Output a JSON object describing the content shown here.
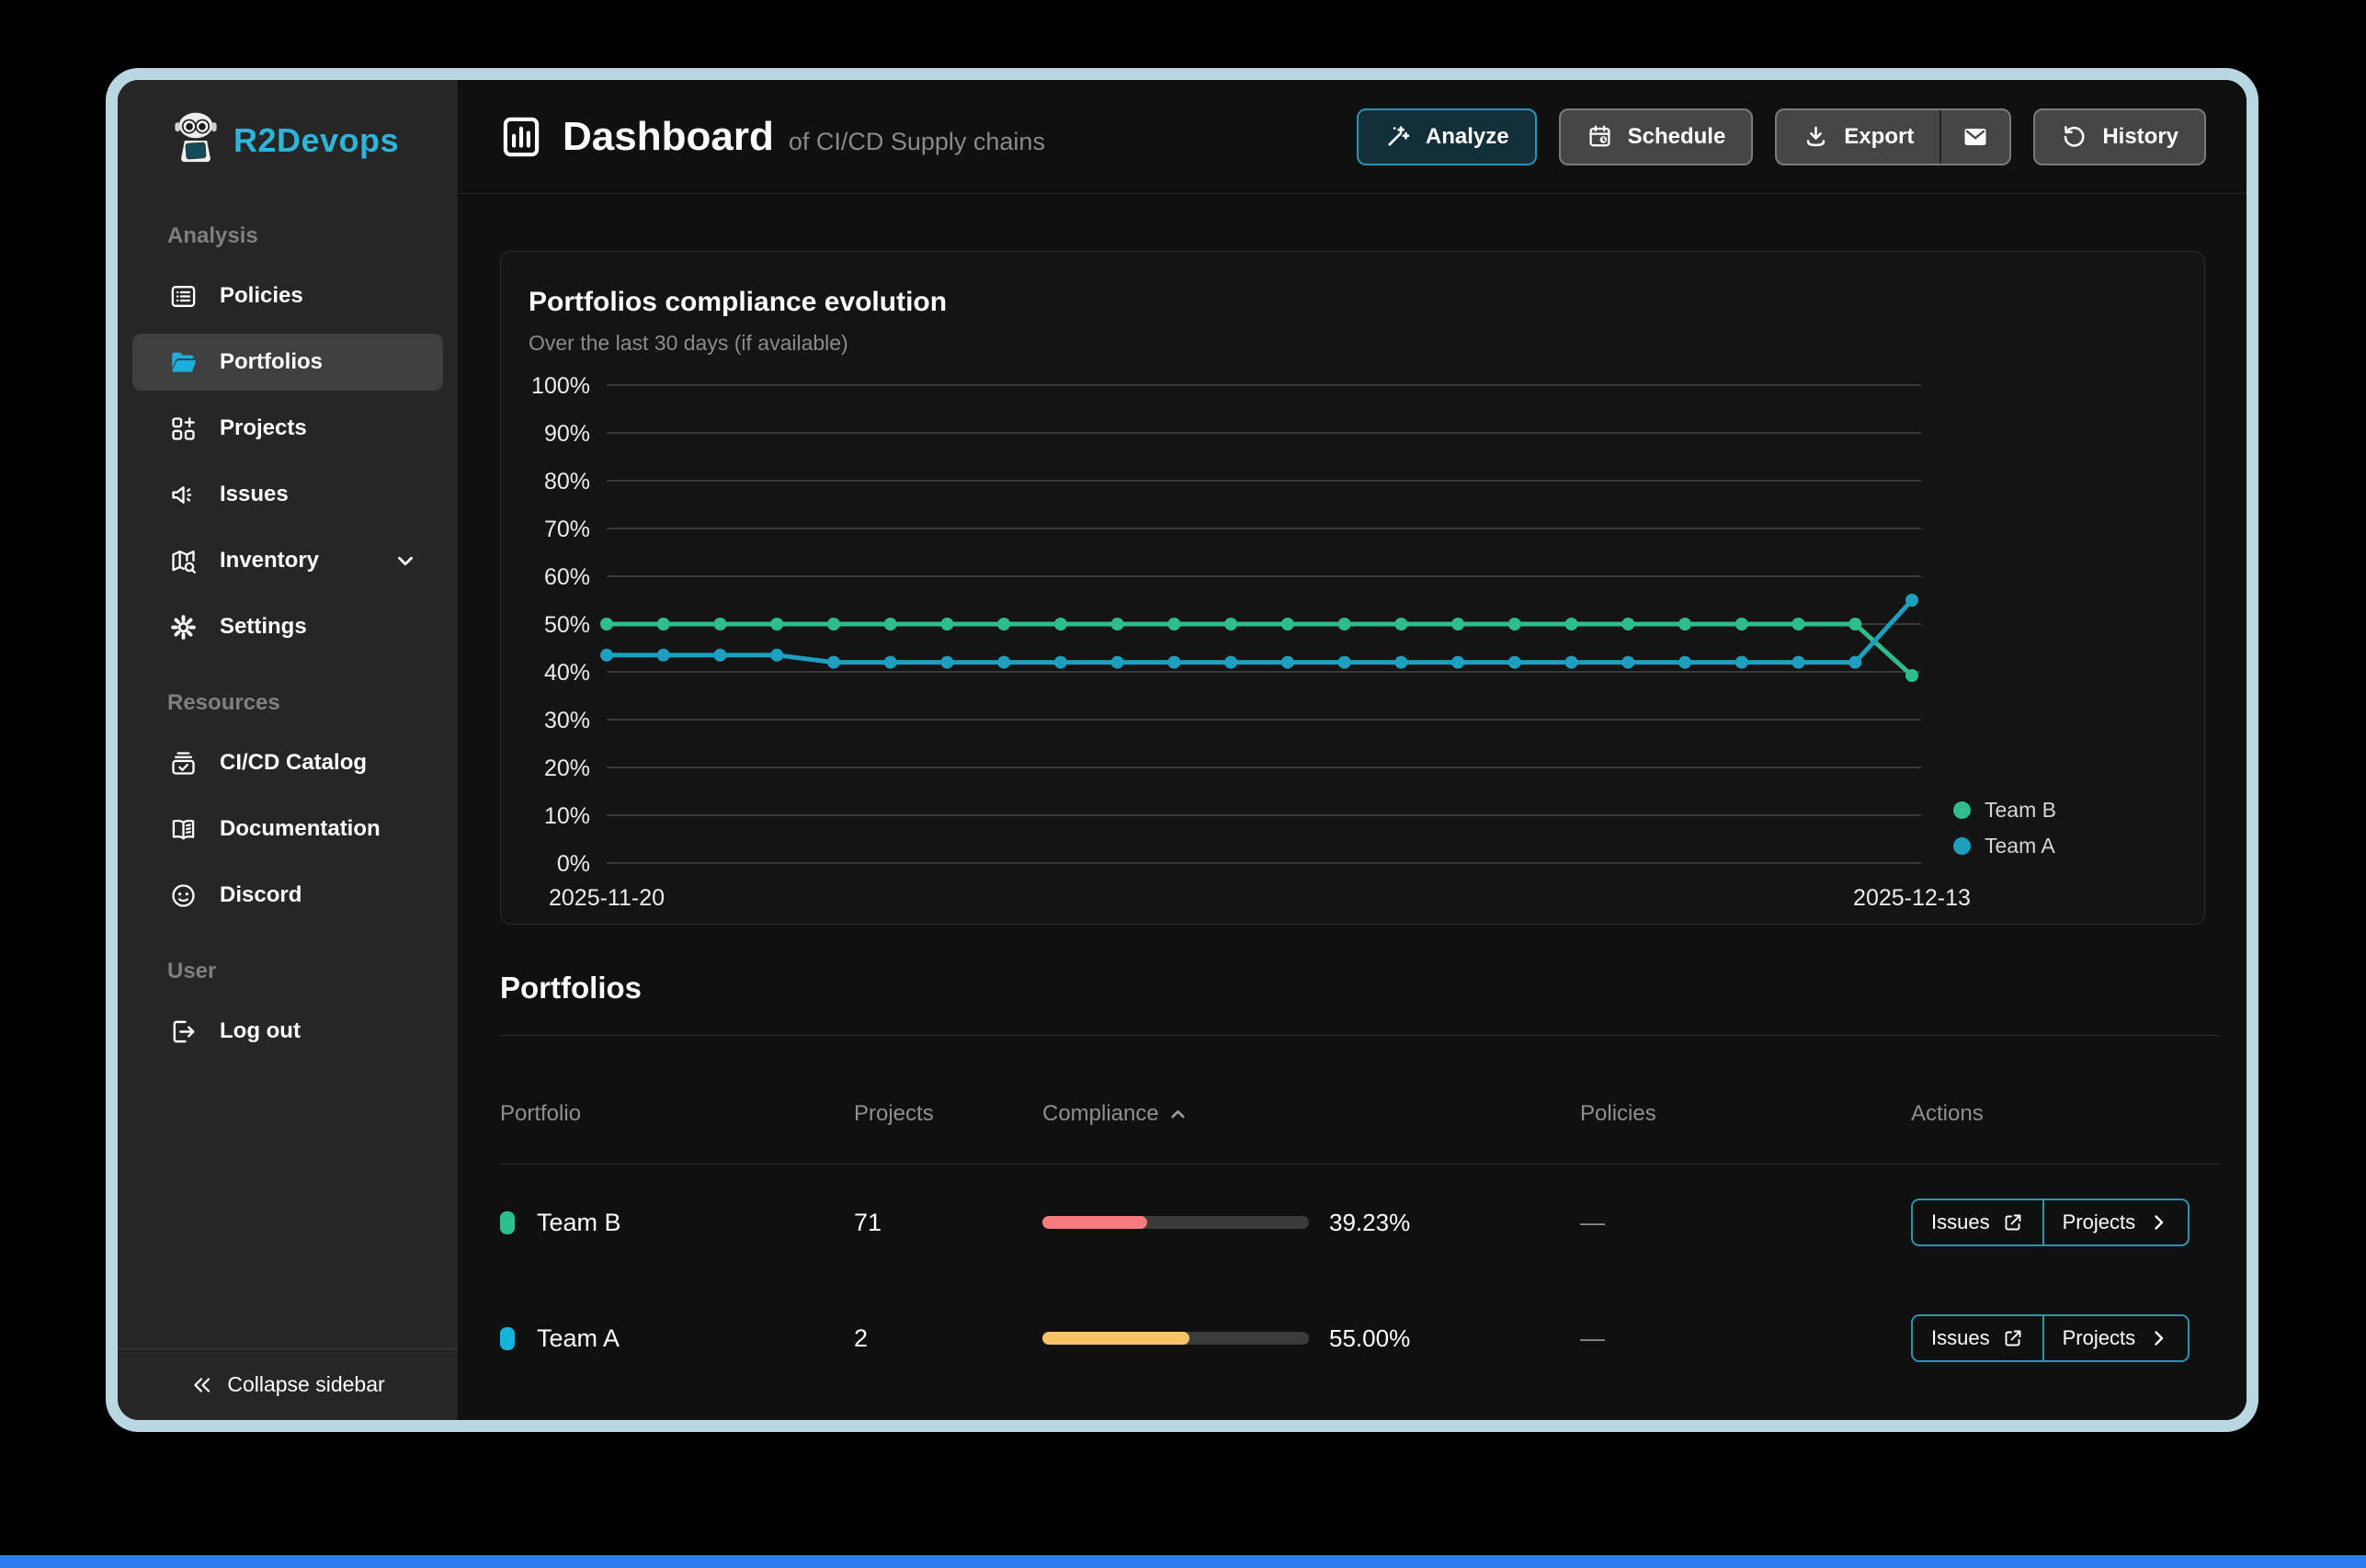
{
  "brand": {
    "name": "R2Devops",
    "accent_color": "#2cb5d8"
  },
  "window": {
    "frame_color": "#b9d6e3",
    "bottom_strip_color": "#2e7bf0"
  },
  "sidebar": {
    "sections": [
      {
        "label": "Analysis",
        "items": [
          {
            "label": "Policies",
            "icon": "list-details-icon"
          },
          {
            "label": "Portfolios",
            "icon": "folder-open-icon",
            "active": true
          },
          {
            "label": "Projects",
            "icon": "apps-add-icon"
          },
          {
            "label": "Issues",
            "icon": "megaphone-icon"
          },
          {
            "label": "Inventory",
            "icon": "map-search-icon",
            "has_dropdown": true
          },
          {
            "label": "Settings",
            "icon": "gear-icon"
          }
        ]
      },
      {
        "label": "Resources",
        "items": [
          {
            "label": "CI/CD Catalog",
            "icon": "archive-check-icon"
          },
          {
            "label": "Documentation",
            "icon": "book-open-icon"
          },
          {
            "label": "Discord",
            "icon": "discord-icon"
          }
        ]
      },
      {
        "label": "User",
        "items": [
          {
            "label": "Log out",
            "icon": "logout-icon"
          }
        ]
      }
    ],
    "collapse_label": "Collapse sidebar"
  },
  "header": {
    "title": "Dashboard",
    "subtitle": "of CI/CD Supply chains",
    "actions": {
      "analyze": {
        "label": "Analyze",
        "icon": "magic-wand-icon"
      },
      "schedule": {
        "label": "Schedule",
        "icon": "calendar-clock-icon"
      },
      "export": {
        "label": "Export",
        "icon": "download-icon",
        "mail_icon": "envelope-icon"
      },
      "history": {
        "label": "History",
        "icon": "history-icon"
      }
    }
  },
  "chart_data": {
    "type": "line",
    "title": "Portfolios compliance evolution",
    "subtitle": "Over the last 30 days (if available)",
    "ylim": [
      0,
      100
    ],
    "yticks": [
      0,
      10,
      20,
      30,
      40,
      50,
      60,
      70,
      80,
      90,
      100
    ],
    "ytick_format": "percent",
    "grid": true,
    "x_start_label": "2025-11-20",
    "x_end_label": "2025-12-13",
    "legend_position": "right-bottom",
    "series": [
      {
        "name": "Team B",
        "color": "#2ebd8c",
        "values": [
          50,
          50,
          50,
          50,
          50,
          50,
          50,
          50,
          50,
          50,
          50,
          50,
          50,
          50,
          50,
          50,
          50,
          50,
          50,
          50,
          50,
          50,
          50,
          39.23
        ]
      },
      {
        "name": "Team A",
        "color": "#1d9fc0",
        "values": [
          43.5,
          43.5,
          43.5,
          43.5,
          42,
          42,
          42,
          42,
          42,
          42,
          42,
          42,
          42,
          42,
          42,
          42,
          42,
          42,
          42,
          42,
          42,
          42,
          42,
          55
        ]
      }
    ]
  },
  "portfolios_section": {
    "heading": "Portfolios",
    "columns": {
      "portfolio": "Portfolio",
      "projects": "Projects",
      "compliance": "Compliance",
      "policies": "Policies",
      "actions": "Actions"
    },
    "sorted_by": "compliance",
    "sort_direction": "asc",
    "rows": [
      {
        "name": "Team B",
        "swatch_color": "#2ebd8c",
        "projects": "71",
        "compliance_pct": 39.23,
        "compliance_label": "39.23%",
        "bar_color": "#f47c7c",
        "policies": "—",
        "issues_label": "Issues",
        "projects_label": "Projects"
      },
      {
        "name": "Team A",
        "swatch_color": "#14b4d8",
        "projects": "2",
        "compliance_pct": 55,
        "compliance_label": "55.00%",
        "bar_color": "#f6c464",
        "policies": "—",
        "issues_label": "Issues",
        "projects_label": "Projects"
      }
    ]
  }
}
